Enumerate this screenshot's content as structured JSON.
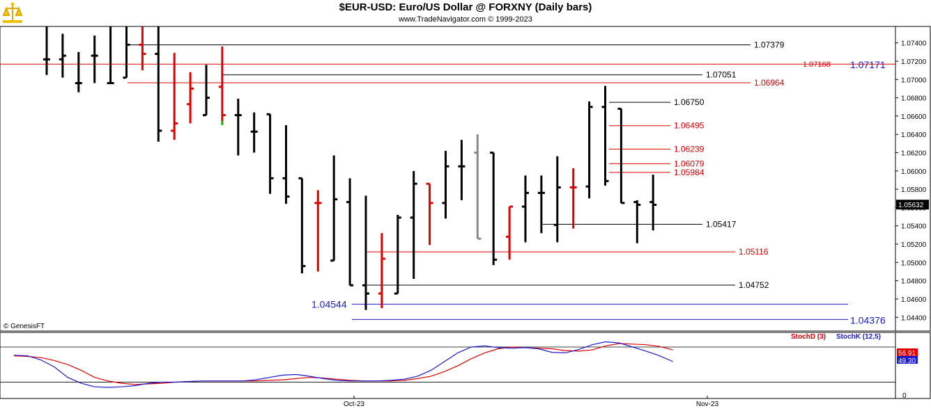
{
  "header": {
    "title": "$EUR-USD:  Euro/US Dollar @ FORXNY  (Daily bars)",
    "subtitle": "www.TradeNavigator.com © 1999-2023"
  },
  "copyright": "© GenesisFT",
  "colors": {
    "up_bar": "#000000",
    "down_bar": "#e00000",
    "neutral_bar": "#888888",
    "blue_level": "#1a1ad0",
    "red_level": "#e00000",
    "stochD": "#e00000",
    "stochK": "#1a1ad0"
  },
  "chart_data": [
    {
      "type": "ohlc",
      "title": "$EUR-USD:  Euro/US Dollar @ FORXNY  (Daily bars)",
      "ylim": [
        1.0425,
        1.0758
      ],
      "y_ticks": [
        "1.07400",
        "1.07200",
        "1.07000",
        "1.06800",
        "1.06600",
        "1.06400",
        "1.06200",
        "1.06000",
        "1.05800",
        "1.05600",
        "1.05400",
        "1.05200",
        "1.05000",
        "1.04800",
        "1.04600",
        "1.04400"
      ],
      "last_price": "1.05632",
      "bars": [
        {
          "h": 1.0758,
          "l": 1.0705,
          "o": 1.0722,
          "c": 1.0722,
          "col": "k"
        },
        {
          "h": 1.075,
          "l": 1.0702,
          "o": 1.0722,
          "c": 1.0726,
          "col": "k"
        },
        {
          "h": 1.073,
          "l": 1.0686,
          "o": 1.0696,
          "c": 1.0696,
          "col": "k"
        },
        {
          "h": 1.0748,
          "l": 1.0696,
          "o": 1.0726,
          "c": 1.0726,
          "col": "k"
        },
        {
          "h": 1.0758,
          "l": 1.0696,
          "o": 1.0696,
          "c": 1.0696,
          "col": "k"
        },
        {
          "h": 1.0758,
          "l": 1.0702,
          "o": 1.0702,
          "c": 1.0738,
          "col": "k"
        },
        {
          "h": 1.0758,
          "l": 1.071,
          "o": 1.0738,
          "c": 1.0728,
          "col": "r"
        },
        {
          "h": 1.0758,
          "l": 1.0632,
          "o": 1.0728,
          "c": 1.0644,
          "col": "k"
        },
        {
          "h": 1.0729,
          "l": 1.0634,
          "o": 1.0644,
          "c": 1.0652,
          "col": "r"
        },
        {
          "h": 1.0708,
          "l": 1.0652,
          "o": 1.0673,
          "c": 1.069,
          "col": "r"
        },
        {
          "h": 1.0716,
          "l": 1.0661,
          "o": 1.0661,
          "c": 1.068,
          "col": "k"
        },
        {
          "h": 1.0736,
          "l": 1.065,
          "o": 1.0692,
          "c": 1.0661,
          "col": "g"
        },
        {
          "h": 1.0679,
          "l": 1.0617,
          "o": 1.0661,
          "c": 1.0661,
          "col": "k"
        },
        {
          "h": 1.0664,
          "l": 1.062,
          "o": 1.0643,
          "c": 1.0643,
          "col": "k"
        },
        {
          "h": 1.0662,
          "l": 1.0575,
          "o": 1.0662,
          "c": 1.0592,
          "col": "k"
        },
        {
          "h": 1.065,
          "l": 1.0564,
          "o": 1.0592,
          "c": 1.0572,
          "col": "k"
        },
        {
          "h": 1.0592,
          "l": 1.0488,
          "o": 1.0592,
          "c": 1.0496,
          "col": "k"
        },
        {
          "h": 1.0579,
          "l": 1.049,
          "o": 1.0565,
          "c": 1.0565,
          "col": "r"
        },
        {
          "h": 1.0617,
          "l": 1.0502,
          "o": 1.0502,
          "c": 1.0569,
          "col": "k"
        },
        {
          "h": 1.0592,
          "l": 1.0475,
          "o": 1.0566,
          "c": 1.0475,
          "col": "k"
        },
        {
          "h": 1.0573,
          "l": 1.0448,
          "o": 1.0475,
          "c": 1.0466,
          "col": "k"
        },
        {
          "h": 1.0532,
          "l": 1.045,
          "o": 1.0466,
          "c": 1.0504,
          "col": "r"
        },
        {
          "h": 1.0552,
          "l": 1.0466,
          "o": 1.0466,
          "c": 1.0549,
          "col": "k"
        },
        {
          "h": 1.06,
          "l": 1.0482,
          "o": 1.0549,
          "c": 1.0586,
          "col": "k"
        },
        {
          "h": 1.0586,
          "l": 1.0519,
          "o": 1.0586,
          "c": 1.0565,
          "col": "r"
        },
        {
          "h": 1.0622,
          "l": 1.0548,
          "o": 1.0565,
          "c": 1.0605,
          "col": "k"
        },
        {
          "h": 1.0634,
          "l": 1.0568,
          "o": 1.0605,
          "c": 1.0605,
          "col": "k"
        },
        {
          "h": 1.064,
          "l": 1.0526,
          "o": 1.062,
          "c": 1.0526,
          "col": "n"
        },
        {
          "h": 1.062,
          "l": 1.0497,
          "o": 1.062,
          "c": 1.0503,
          "col": "k"
        },
        {
          "h": 1.0561,
          "l": 1.0503,
          "o": 1.0528,
          "c": 1.0561,
          "col": "r"
        },
        {
          "h": 1.0595,
          "l": 1.0522,
          "o": 1.0561,
          "c": 1.0576,
          "col": "k"
        },
        {
          "h": 1.0595,
          "l": 1.0532,
          "o": 1.0576,
          "c": 1.0576,
          "col": "k"
        },
        {
          "h": 1.0616,
          "l": 1.0522,
          "o": 1.0541,
          "c": 1.0582,
          "col": "k"
        },
        {
          "h": 1.0603,
          "l": 1.0537,
          "o": 1.0582,
          "c": 1.0582,
          "col": "r"
        },
        {
          "h": 1.0676,
          "l": 1.057,
          "o": 1.0583,
          "c": 1.067,
          "col": "k"
        },
        {
          "h": 1.0693,
          "l": 1.0584,
          "o": 1.067,
          "c": 1.0589,
          "col": "k"
        },
        {
          "h": 1.0668,
          "l": 1.0565,
          "o": 1.0668,
          "c": 1.0565,
          "col": "k"
        },
        {
          "h": 1.0568,
          "l": 1.0521,
          "o": 1.0566,
          "c": 1.0563,
          "col": "k"
        },
        {
          "h": 1.0596,
          "l": 1.0535,
          "o": 1.0566,
          "c": 1.0563,
          "col": "k"
        }
      ],
      "levels": [
        {
          "label": "1.07379",
          "value": 1.07379,
          "color": "black",
          "x1b": 10,
          "x2b": 36
        },
        {
          "label": "1.07168",
          "value": 1.07168,
          "color": "red",
          "x1b": -2,
          "x2b": 44.2
        },
        {
          "label": "1.07171",
          "value": 1.07171,
          "color": "blue",
          "x1b": 44.6,
          "x2b": 44.7
        },
        {
          "label": "1.07051",
          "value": 1.07051,
          "color": "black",
          "x1b": 12,
          "x2b": 32
        },
        {
          "label": "1.06964",
          "value": 1.06964,
          "color": "red",
          "x1b": 5,
          "x2b": 34
        },
        {
          "label": "1.06750",
          "value": 1.0675,
          "color": "black",
          "x1b": 31,
          "x2b": 31.5
        },
        {
          "label": "1.06495",
          "value": 1.06495,
          "color": "red",
          "x1b": 31,
          "x2b": 31.5
        },
        {
          "label": "1.06239",
          "value": 1.06239,
          "color": "red",
          "x1b": 31,
          "x2b": 31.5
        },
        {
          "label": "1.06079",
          "value": 1.06079,
          "color": "red",
          "x1b": 31,
          "x2b": 31.5
        },
        {
          "label": "1.05984",
          "value": 1.05984,
          "color": "red",
          "x1b": 31,
          "x2b": 31.5
        },
        {
          "label": "1.05417",
          "value": 1.05417,
          "color": "black",
          "x1b": 28,
          "x2b": 31.5
        },
        {
          "label": "1.05116",
          "value": 1.05116,
          "color": "red",
          "x1b": 20,
          "x2b": 34
        },
        {
          "label": "1.04752",
          "value": 1.04752,
          "color": "black",
          "x1b": 21,
          "x2b": 34
        },
        {
          "label": "1.04544",
          "value": 1.04544,
          "color": "blue",
          "x1b": 21,
          "x2b": 44
        },
        {
          "label": "1.04376",
          "value": 1.04376,
          "color": "blue",
          "x1b": 19,
          "x2b": 44
        }
      ]
    },
    {
      "type": "line",
      "series": [
        {
          "name": "StochD (3)",
          "value": "56.91",
          "values": [
            65,
            64,
            62,
            57,
            50,
            40,
            28,
            22,
            18,
            16,
            17,
            18,
            20,
            21,
            22,
            22,
            22,
            22,
            22,
            23,
            24,
            26,
            28,
            27,
            25,
            23,
            22,
            22,
            22,
            23,
            26,
            30,
            38,
            48,
            60,
            70,
            77,
            80,
            79,
            78,
            77,
            74,
            73,
            75,
            82,
            86,
            85,
            84,
            81,
            75
          ]
        },
        {
          "name": "StochK (12,5)",
          "value": "49.30",
          "values": [
            66,
            65,
            58,
            46,
            28,
            18,
            12,
            11,
            12,
            14,
            18,
            20,
            20,
            21,
            22,
            22,
            22,
            22,
            24,
            28,
            32,
            33,
            30,
            26,
            23,
            22,
            22,
            22,
            23,
            25,
            30,
            40,
            55,
            70,
            80,
            82,
            79,
            78,
            79,
            77,
            71,
            70,
            76,
            84,
            89,
            87,
            80,
            73,
            65,
            55
          ]
        },
        {
          "name": "threshold-high",
          "values": [
            80,
            80
          ]
        },
        {
          "name": "threshold-low",
          "values": [
            20,
            20
          ]
        }
      ],
      "ylim": [
        -8,
        105
      ],
      "x_labels": [
        "Oct-23",
        "Nov-23"
      ],
      "y_ticks": [
        "0"
      ]
    }
  ]
}
